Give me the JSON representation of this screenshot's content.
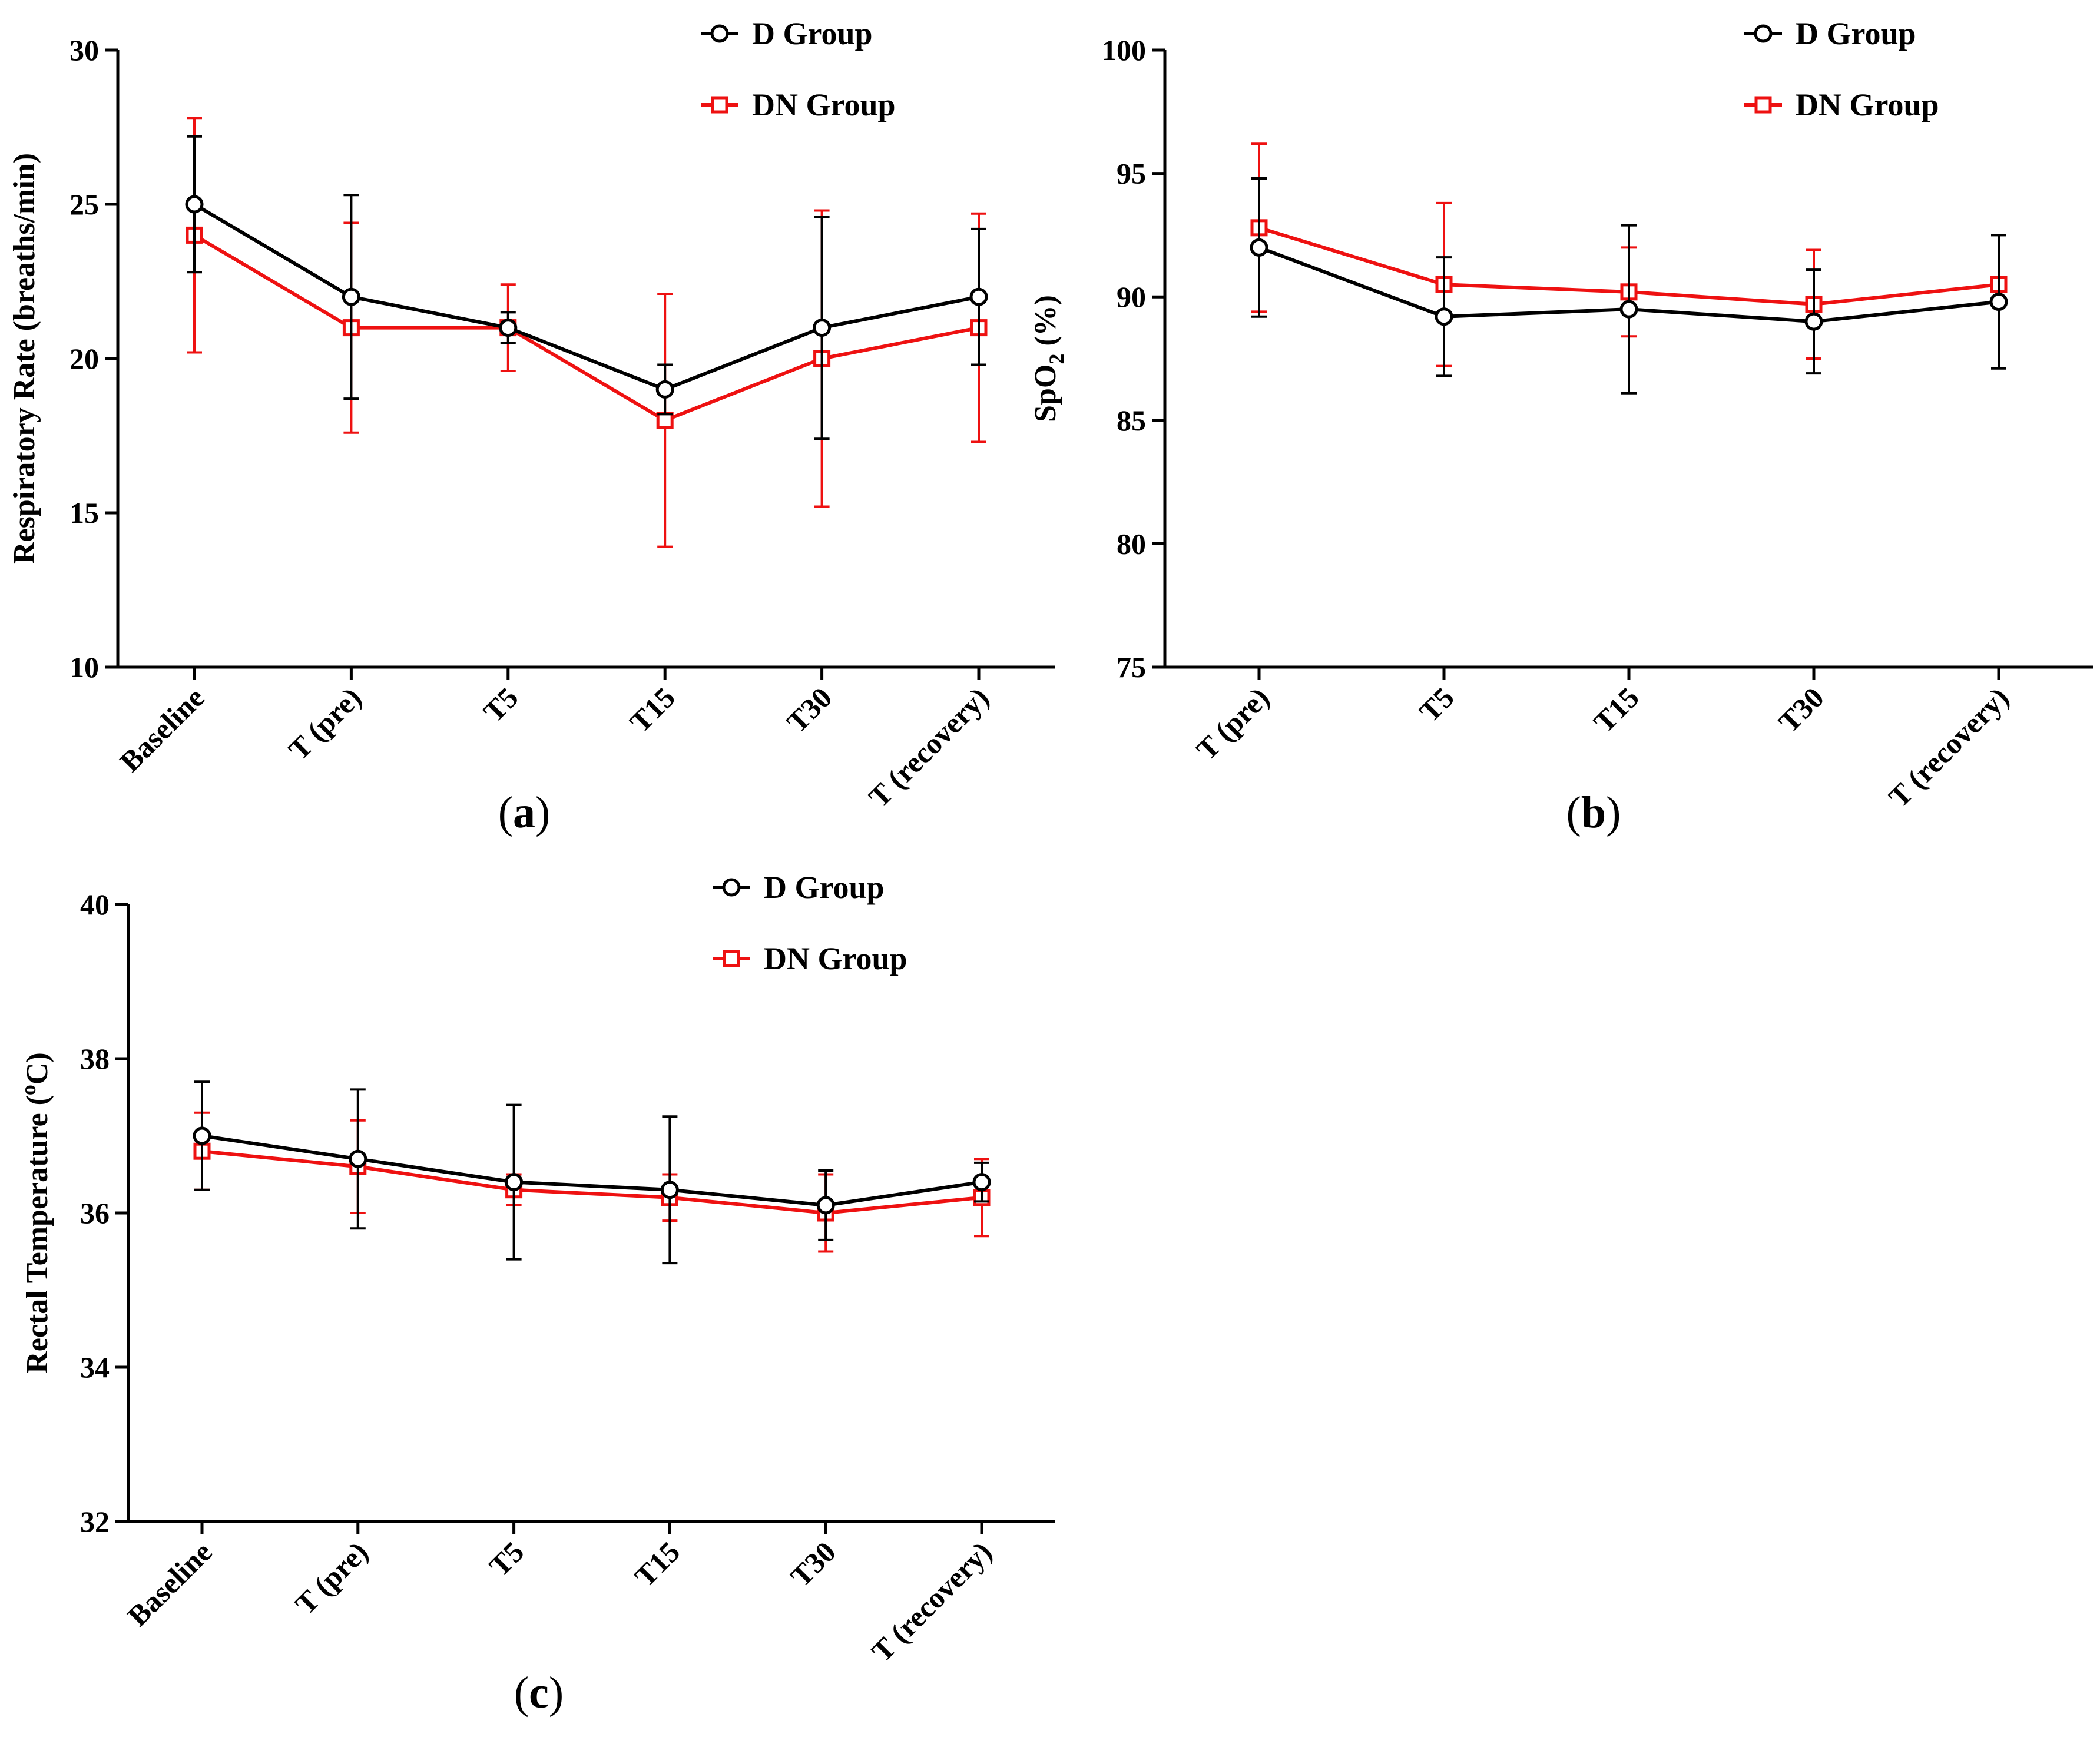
{
  "colors": {
    "d_group": "#000000",
    "dn_group": "#ee1111"
  },
  "chart_data": [
    {
      "id": "a",
      "type": "line",
      "panel_label": "a",
      "ylabel": "Respiratory Rate (breaths/min)",
      "xlabel": "",
      "ylim": [
        10,
        30
      ],
      "yticks": [
        "10",
        "15",
        "20",
        "25",
        "30"
      ],
      "categories": [
        "Baseline",
        "T (pre)",
        "T5",
        "T15",
        "T30",
        "T (recovery)"
      ],
      "legend_position": "top-right",
      "series": [
        {
          "name": "D Group",
          "marker": "circle",
          "color": "#000000",
          "values": [
            25,
            22,
            21,
            19,
            21,
            22
          ],
          "errors": [
            2.2,
            3.3,
            0.5,
            0.8,
            3.6,
            2.2
          ]
        },
        {
          "name": "DN Group",
          "marker": "square",
          "color": "#ee1111",
          "values": [
            24,
            21,
            21,
            18,
            20,
            21
          ],
          "errors": [
            3.8,
            3.4,
            1.4,
            4.1,
            4.8,
            3.7
          ]
        }
      ]
    },
    {
      "id": "b",
      "type": "line",
      "panel_label": "b",
      "ylabel_main": "SpO",
      "ylabel_sub": "2",
      "ylabel_tail": " (%)",
      "xlabel": "",
      "ylim": [
        75,
        100
      ],
      "yticks": [
        "75",
        "80",
        "85",
        "90",
        "95",
        "100"
      ],
      "categories": [
        "T (pre)",
        "T5",
        "T15",
        "T30",
        "T (recovery)"
      ],
      "legend_position": "top-right",
      "series": [
        {
          "name": "D Group",
          "marker": "circle",
          "color": "#000000",
          "values": [
            92.0,
            89.2,
            89.5,
            89.0,
            89.8
          ],
          "errors": [
            2.8,
            2.4,
            3.4,
            2.1,
            2.7
          ]
        },
        {
          "name": "DN Group",
          "marker": "square",
          "color": "#ee1111",
          "values": [
            92.8,
            90.5,
            90.2,
            89.7,
            90.5
          ],
          "errors": [
            3.4,
            3.3,
            1.8,
            2.2,
            0.3
          ]
        }
      ]
    },
    {
      "id": "c",
      "type": "line",
      "panel_label": "c",
      "ylabel_main": "Rectal Temperature (",
      "ylabel_sup": "o",
      "ylabel_tail": "C)",
      "xlabel": "",
      "ylim": [
        32,
        40
      ],
      "yticks": [
        "32",
        "34",
        "36",
        "38",
        "40"
      ],
      "categories": [
        "Baseline",
        "T (pre)",
        "T5",
        "T15",
        "T30",
        "T (recovery)"
      ],
      "legend_position": "top-right",
      "series": [
        {
          "name": "D Group",
          "marker": "circle",
          "color": "#000000",
          "values": [
            37.0,
            36.7,
            36.4,
            36.3,
            36.1,
            36.4
          ],
          "errors": [
            0.7,
            0.9,
            1.0,
            0.95,
            0.45,
            0.25
          ]
        },
        {
          "name": "DN Group",
          "marker": "square",
          "color": "#ee1111",
          "values": [
            36.8,
            36.6,
            36.3,
            36.2,
            36.0,
            36.2
          ],
          "errors": [
            0.5,
            0.6,
            0.2,
            0.3,
            0.5,
            0.5
          ]
        }
      ]
    }
  ]
}
